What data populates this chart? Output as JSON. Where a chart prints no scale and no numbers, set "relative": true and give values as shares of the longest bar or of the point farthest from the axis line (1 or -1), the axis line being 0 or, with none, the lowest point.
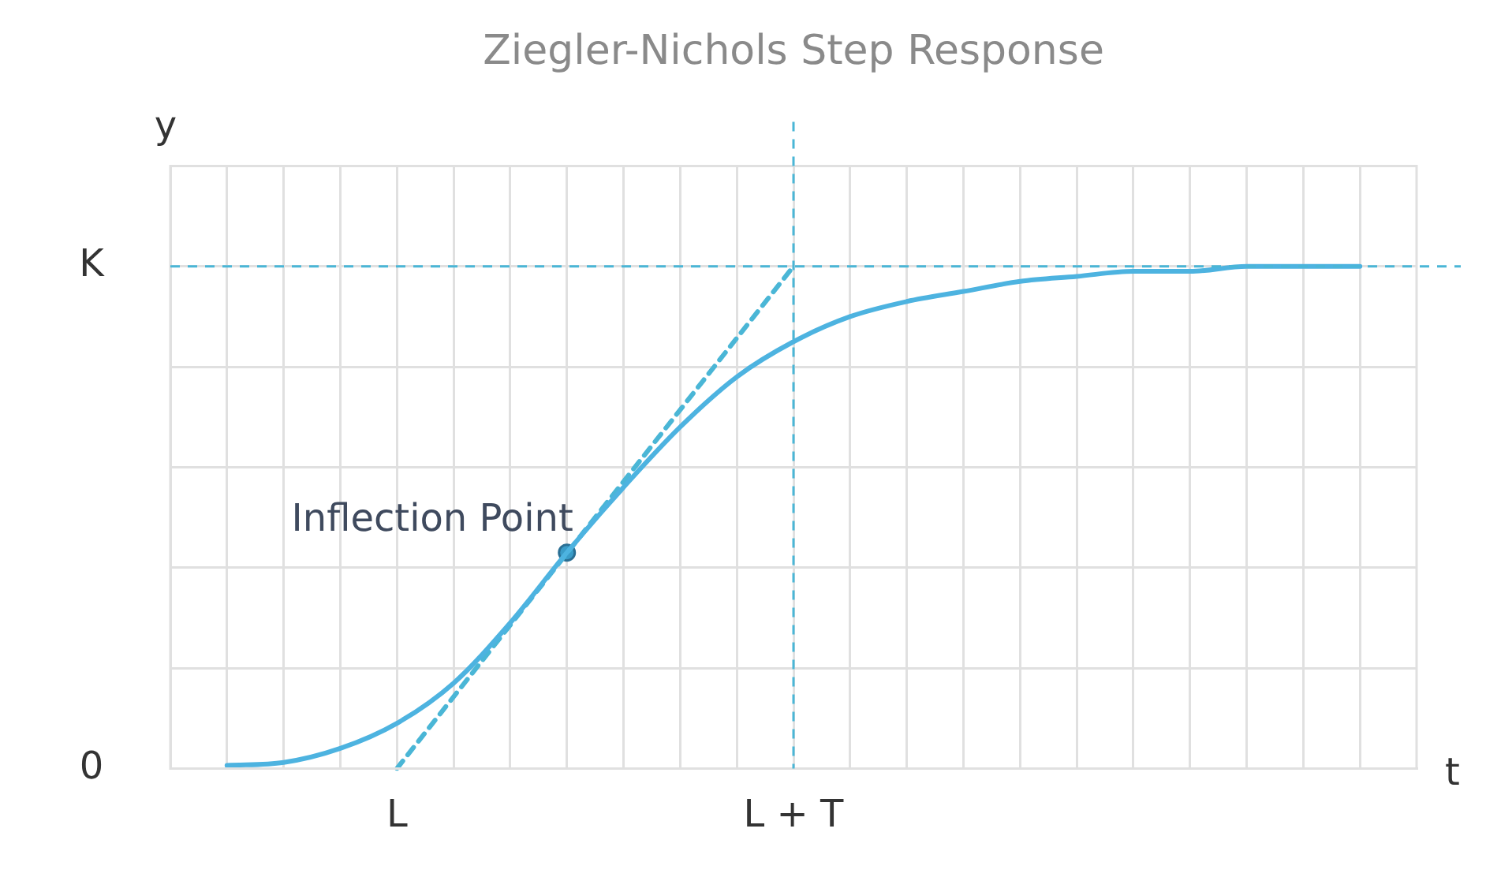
{
  "chart_data": {
    "type": "line",
    "title": "Ziegler-Nichols Step Response",
    "xlabel": "t",
    "ylabel": "y",
    "relative": true,
    "categories": [
      null,
      null,
      null,
      "L",
      null,
      null,
      null,
      null,
      null,
      null,
      "L + T",
      null,
      null,
      null,
      null,
      null,
      null,
      null,
      null,
      null,
      null
    ],
    "grid": true,
    "legend": false,
    "series": [
      {
        "color": "#4db3e0",
        "marker": "none",
        "line_style": "solid",
        "values": [
          0.006,
          0.012,
          0.04,
          0.09,
          0.17,
          0.29,
          0.43,
          0.56,
          0.68,
          0.78,
          0.85,
          0.9,
          0.93,
          0.95,
          0.97,
          0.98,
          0.99,
          0.99,
          1,
          1,
          1
        ]
      },
      {
        "type": "line",
        "color": "#4ab6d6",
        "marker": "none",
        "line_style": "dashed",
        "values": [
          null,
          null,
          null,
          0,
          null,
          null,
          null,
          null,
          null,
          null,
          1,
          null,
          null,
          null,
          null,
          null,
          null,
          null,
          null,
          null,
          null
        ]
      },
      {
        "type": "scatter",
        "name": "Inflection Point",
        "color": "#3a9cc8",
        "marker": "circle",
        "values": [
          null,
          null,
          null,
          null,
          null,
          null,
          0.43,
          null,
          null,
          null,
          null,
          null,
          null,
          null,
          null,
          null,
          null,
          null,
          null,
          null,
          null
        ]
      }
    ],
    "ref_lines": [
      {
        "axis": "x",
        "value": "L + T",
        "color": "#4ab6d6",
        "line_style": "dashed"
      },
      {
        "axis": "y",
        "value": 1,
        "label": "K",
        "color": "#4ab6d6",
        "line_style": "dashed"
      }
    ],
    "annotations": [
      "0"
    ]
  }
}
